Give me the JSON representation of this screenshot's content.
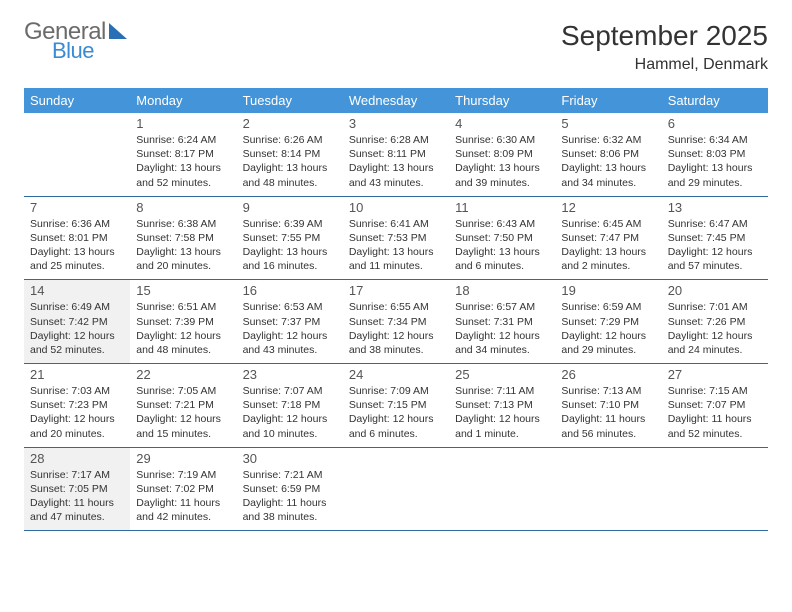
{
  "logo": {
    "general": "General",
    "blue": "Blue"
  },
  "title": "September 2025",
  "location": "Hammel, Denmark",
  "colors": {
    "header_bg": "#4394d9",
    "header_text": "#ffffff",
    "border": "#2f6aa0",
    "shaded_bg": "#f1f1f1",
    "text": "#333333",
    "logo_gray": "#6b6b6b",
    "logo_blue": "#3b8bd4"
  },
  "day_headers": [
    "Sunday",
    "Monday",
    "Tuesday",
    "Wednesday",
    "Thursday",
    "Friday",
    "Saturday"
  ],
  "weeks": [
    [
      {
        "num": "",
        "sunrise": "",
        "sunset": "",
        "daylight": ""
      },
      {
        "num": "1",
        "sunrise": "Sunrise: 6:24 AM",
        "sunset": "Sunset: 8:17 PM",
        "daylight": "Daylight: 13 hours and 52 minutes."
      },
      {
        "num": "2",
        "sunrise": "Sunrise: 6:26 AM",
        "sunset": "Sunset: 8:14 PM",
        "daylight": "Daylight: 13 hours and 48 minutes."
      },
      {
        "num": "3",
        "sunrise": "Sunrise: 6:28 AM",
        "sunset": "Sunset: 8:11 PM",
        "daylight": "Daylight: 13 hours and 43 minutes."
      },
      {
        "num": "4",
        "sunrise": "Sunrise: 6:30 AM",
        "sunset": "Sunset: 8:09 PM",
        "daylight": "Daylight: 13 hours and 39 minutes."
      },
      {
        "num": "5",
        "sunrise": "Sunrise: 6:32 AM",
        "sunset": "Sunset: 8:06 PM",
        "daylight": "Daylight: 13 hours and 34 minutes."
      },
      {
        "num": "6",
        "sunrise": "Sunrise: 6:34 AM",
        "sunset": "Sunset: 8:03 PM",
        "daylight": "Daylight: 13 hours and 29 minutes."
      }
    ],
    [
      {
        "num": "7",
        "sunrise": "Sunrise: 6:36 AM",
        "sunset": "Sunset: 8:01 PM",
        "daylight": "Daylight: 13 hours and 25 minutes."
      },
      {
        "num": "8",
        "sunrise": "Sunrise: 6:38 AM",
        "sunset": "Sunset: 7:58 PM",
        "daylight": "Daylight: 13 hours and 20 minutes."
      },
      {
        "num": "9",
        "sunrise": "Sunrise: 6:39 AM",
        "sunset": "Sunset: 7:55 PM",
        "daylight": "Daylight: 13 hours and 16 minutes."
      },
      {
        "num": "10",
        "sunrise": "Sunrise: 6:41 AM",
        "sunset": "Sunset: 7:53 PM",
        "daylight": "Daylight: 13 hours and 11 minutes."
      },
      {
        "num": "11",
        "sunrise": "Sunrise: 6:43 AM",
        "sunset": "Sunset: 7:50 PM",
        "daylight": "Daylight: 13 hours and 6 minutes."
      },
      {
        "num": "12",
        "sunrise": "Sunrise: 6:45 AM",
        "sunset": "Sunset: 7:47 PM",
        "daylight": "Daylight: 13 hours and 2 minutes."
      },
      {
        "num": "13",
        "sunrise": "Sunrise: 6:47 AM",
        "sunset": "Sunset: 7:45 PM",
        "daylight": "Daylight: 12 hours and 57 minutes."
      }
    ],
    [
      {
        "num": "14",
        "sunrise": "Sunrise: 6:49 AM",
        "sunset": "Sunset: 7:42 PM",
        "daylight": "Daylight: 12 hours and 52 minutes."
      },
      {
        "num": "15",
        "sunrise": "Sunrise: 6:51 AM",
        "sunset": "Sunset: 7:39 PM",
        "daylight": "Daylight: 12 hours and 48 minutes."
      },
      {
        "num": "16",
        "sunrise": "Sunrise: 6:53 AM",
        "sunset": "Sunset: 7:37 PM",
        "daylight": "Daylight: 12 hours and 43 minutes."
      },
      {
        "num": "17",
        "sunrise": "Sunrise: 6:55 AM",
        "sunset": "Sunset: 7:34 PM",
        "daylight": "Daylight: 12 hours and 38 minutes."
      },
      {
        "num": "18",
        "sunrise": "Sunrise: 6:57 AM",
        "sunset": "Sunset: 7:31 PM",
        "daylight": "Daylight: 12 hours and 34 minutes."
      },
      {
        "num": "19",
        "sunrise": "Sunrise: 6:59 AM",
        "sunset": "Sunset: 7:29 PM",
        "daylight": "Daylight: 12 hours and 29 minutes."
      },
      {
        "num": "20",
        "sunrise": "Sunrise: 7:01 AM",
        "sunset": "Sunset: 7:26 PM",
        "daylight": "Daylight: 12 hours and 24 minutes."
      }
    ],
    [
      {
        "num": "21",
        "sunrise": "Sunrise: 7:03 AM",
        "sunset": "Sunset: 7:23 PM",
        "daylight": "Daylight: 12 hours and 20 minutes."
      },
      {
        "num": "22",
        "sunrise": "Sunrise: 7:05 AM",
        "sunset": "Sunset: 7:21 PM",
        "daylight": "Daylight: 12 hours and 15 minutes."
      },
      {
        "num": "23",
        "sunrise": "Sunrise: 7:07 AM",
        "sunset": "Sunset: 7:18 PM",
        "daylight": "Daylight: 12 hours and 10 minutes."
      },
      {
        "num": "24",
        "sunrise": "Sunrise: 7:09 AM",
        "sunset": "Sunset: 7:15 PM",
        "daylight": "Daylight: 12 hours and 6 minutes."
      },
      {
        "num": "25",
        "sunrise": "Sunrise: 7:11 AM",
        "sunset": "Sunset: 7:13 PM",
        "daylight": "Daylight: 12 hours and 1 minute."
      },
      {
        "num": "26",
        "sunrise": "Sunrise: 7:13 AM",
        "sunset": "Sunset: 7:10 PM",
        "daylight": "Daylight: 11 hours and 56 minutes."
      },
      {
        "num": "27",
        "sunrise": "Sunrise: 7:15 AM",
        "sunset": "Sunset: 7:07 PM",
        "daylight": "Daylight: 11 hours and 52 minutes."
      }
    ],
    [
      {
        "num": "28",
        "sunrise": "Sunrise: 7:17 AM",
        "sunset": "Sunset: 7:05 PM",
        "daylight": "Daylight: 11 hours and 47 minutes."
      },
      {
        "num": "29",
        "sunrise": "Sunrise: 7:19 AM",
        "sunset": "Sunset: 7:02 PM",
        "daylight": "Daylight: 11 hours and 42 minutes."
      },
      {
        "num": "30",
        "sunrise": "Sunrise: 7:21 AM",
        "sunset": "Sunset: 6:59 PM",
        "daylight": "Daylight: 11 hours and 38 minutes."
      },
      {
        "num": "",
        "sunrise": "",
        "sunset": "",
        "daylight": ""
      },
      {
        "num": "",
        "sunrise": "",
        "sunset": "",
        "daylight": ""
      },
      {
        "num": "",
        "sunrise": "",
        "sunset": "",
        "daylight": ""
      },
      {
        "num": "",
        "sunrise": "",
        "sunset": "",
        "daylight": ""
      }
    ]
  ],
  "shaded_cells": [
    "2-0",
    "4-0"
  ]
}
